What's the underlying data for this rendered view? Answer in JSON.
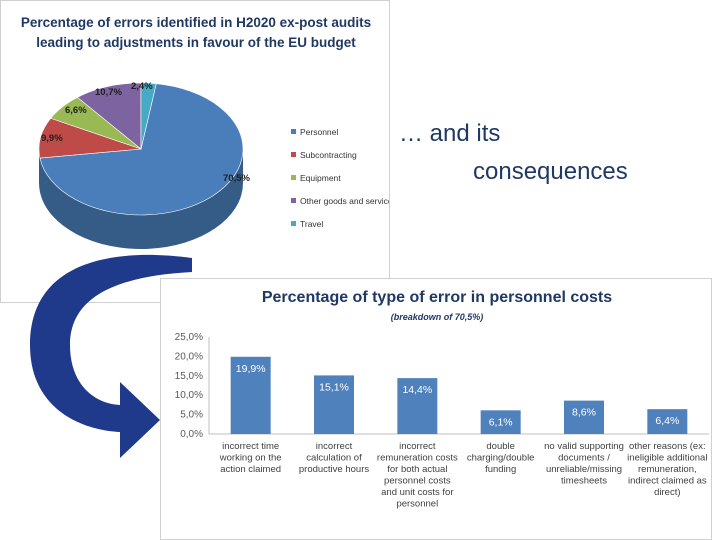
{
  "slide": {
    "title_line1": "… and its",
    "title_line2": "consequences"
  },
  "chart_data": [
    {
      "type": "pie",
      "title_line1": "Percentage of errors identified in H2020 ex-post audits",
      "title_line2": "leading to adjustments in favour of the EU budget",
      "categories": [
        "Personnel",
        "Subcontracting",
        "Equipment",
        "Other goods and services",
        "Travel"
      ],
      "values": [
        70.5,
        9.9,
        6.6,
        10.7,
        2.4
      ],
      "value_labels": [
        "70,5%",
        "9,9%",
        "6,6%",
        "10,7%",
        "2,4%"
      ],
      "colors": [
        "#4a7ebb",
        "#be4b48",
        "#98b954",
        "#7e63a1",
        "#46aac5"
      ],
      "legend_position": "right"
    },
    {
      "type": "bar",
      "title": "Percentage of type of error in personnel costs",
      "subtitle": "(breakdown of 70,5%)",
      "categories": [
        [
          "incorrect time",
          "working on the",
          "action claimed"
        ],
        [
          "incorrect",
          "calculation of",
          "productive hours"
        ],
        [
          "incorrect",
          "remuneration costs",
          "for both actual",
          "personnel costs",
          "and unit costs for",
          "personnel"
        ],
        [
          "double",
          "charging/double",
          "funding"
        ],
        [
          "no valid supporting",
          "documents /",
          "unreliable/missing",
          "timesheets"
        ],
        [
          "other reasons (ex:",
          "ineligible additional",
          "remuneration,",
          "indirect claimed as",
          "direct)"
        ]
      ],
      "values": [
        19.9,
        15.1,
        14.4,
        6.1,
        8.6,
        6.4
      ],
      "value_labels": [
        "19,9%",
        "15,1%",
        "14,4%",
        "6,1%",
        "8,6%",
        "6,4%"
      ],
      "ylim": [
        0,
        25
      ],
      "yticks": [
        "0,0%",
        "5,0%",
        "10,0%",
        "15,0%",
        "20,0%",
        "25,0%"
      ],
      "bar_color": "#4f81bd",
      "grid": false
    }
  ],
  "colors": {
    "title": "#1f3864",
    "arrow": "#1f3a8a",
    "pie_personnel": "#4a7ebb"
  }
}
